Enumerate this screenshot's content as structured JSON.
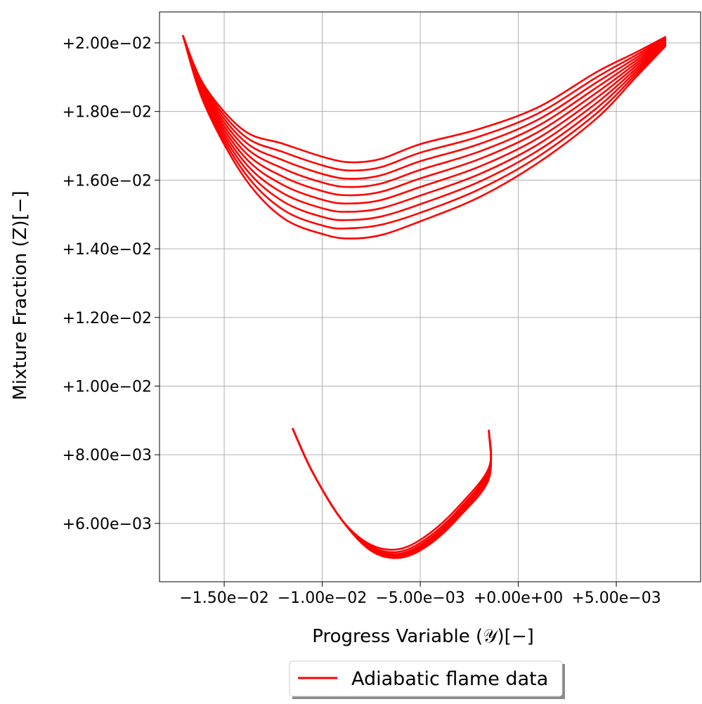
{
  "chart_data": {
    "type": "line",
    "title": "",
    "xlabel": "Progress Variable (𝒴)[−]",
    "ylabel": "Mixture Fraction (Z)[−]",
    "xlim": [
      -0.0183,
      0.0093
    ],
    "ylim": [
      0.0043,
      0.0209
    ],
    "grid": true,
    "legend": {
      "placement": "bottom-center, below plot",
      "entries": [
        "Adiabatic flame data"
      ]
    },
    "line_color": "#ff0000",
    "xticks": [
      {
        "value": -0.015,
        "label": "−1.50e−02"
      },
      {
        "value": -0.01,
        "label": "−1.00e−02"
      },
      {
        "value": -0.005,
        "label": "−5.00e−03"
      },
      {
        "value": 0.0,
        "label": "+0.00e+00"
      },
      {
        "value": 0.005,
        "label": "+5.00e−03"
      }
    ],
    "yticks": [
      {
        "value": 0.006,
        "label": "+6.00e−03"
      },
      {
        "value": 0.008,
        "label": "+8.00e−03"
      },
      {
        "value": 0.01,
        "label": "+1.00e−02"
      },
      {
        "value": 0.012,
        "label": "+1.20e−02"
      },
      {
        "value": 0.014,
        "label": "+1.40e−02"
      },
      {
        "value": 0.016,
        "label": "+1.60e−02"
      },
      {
        "value": 0.018,
        "label": "+1.80e−02"
      },
      {
        "value": 0.02,
        "label": "+2.00e−02"
      }
    ],
    "series": [
      {
        "name": "Adiabatic flame data",
        "x": [
          -0.0171,
          -0.016,
          -0.014,
          -0.012,
          -0.0098,
          -0.0085,
          -0.007,
          -0.005,
          -0.002,
          0.001,
          0.004,
          0.006,
          0.0075
        ],
        "y": [
          0.0202,
          0.0182,
          0.0161,
          0.0149,
          0.0144,
          0.0143,
          0.0144,
          0.0148,
          0.0155,
          0.0165,
          0.0178,
          0.019,
          0.0199
        ]
      },
      {
        "name": "Adiabatic flame data",
        "x": [
          -0.0171,
          -0.016,
          -0.014,
          -0.012,
          -0.0098,
          -0.0085,
          -0.007,
          -0.005,
          -0.002,
          0.001,
          0.004,
          0.006,
          0.0075
        ],
        "y": [
          0.0202,
          0.01826,
          0.01625,
          0.01514,
          0.01465,
          0.0146,
          0.0147,
          0.01505,
          0.01573,
          0.01668,
          0.01795,
          0.01908,
          0.01993
        ]
      },
      {
        "name": "Adiabatic flame data",
        "x": [
          -0.0171,
          -0.016,
          -0.014,
          -0.012,
          -0.0098,
          -0.0085,
          -0.007,
          -0.005,
          -0.002,
          0.001,
          0.004,
          0.006,
          0.0075
        ],
        "y": [
          0.0202,
          0.01832,
          0.0164,
          0.01538,
          0.0149,
          0.01484,
          0.01494,
          0.0153,
          0.01595,
          0.01686,
          0.0181,
          0.01916,
          0.01996
        ]
      },
      {
        "name": "Adiabatic flame data",
        "x": [
          -0.0171,
          -0.016,
          -0.014,
          -0.012,
          -0.0098,
          -0.0085,
          -0.007,
          -0.005,
          -0.002,
          0.001,
          0.004,
          0.006,
          0.0075
        ],
        "y": [
          0.0202,
          0.01838,
          0.01655,
          0.01562,
          0.01515,
          0.01508,
          0.01518,
          0.01555,
          0.01617,
          0.01704,
          0.01825,
          0.01924,
          0.01999
        ]
      },
      {
        "name": "Adiabatic flame data",
        "x": [
          -0.0171,
          -0.016,
          -0.014,
          -0.012,
          -0.0098,
          -0.0085,
          -0.007,
          -0.005,
          -0.002,
          0.001,
          0.004,
          0.006,
          0.0075
        ],
        "y": [
          0.0202,
          0.01844,
          0.0167,
          0.01586,
          0.0154,
          0.01532,
          0.01542,
          0.0158,
          0.01639,
          0.01722,
          0.0184,
          0.01932,
          0.02002
        ]
      },
      {
        "name": "Adiabatic flame data",
        "x": [
          -0.0171,
          -0.016,
          -0.014,
          -0.012,
          -0.0098,
          -0.0085,
          -0.007,
          -0.005,
          -0.002,
          0.001,
          0.004,
          0.006,
          0.0075
        ],
        "y": [
          0.0202,
          0.0185,
          0.01685,
          0.0161,
          0.01565,
          0.01556,
          0.01566,
          0.01605,
          0.01661,
          0.0174,
          0.01855,
          0.0194,
          0.02005
        ]
      },
      {
        "name": "Adiabatic flame data",
        "x": [
          -0.0171,
          -0.016,
          -0.014,
          -0.012,
          -0.0098,
          -0.0085,
          -0.007,
          -0.005,
          -0.002,
          0.001,
          0.004,
          0.006,
          0.0075
        ],
        "y": [
          0.0202,
          0.01856,
          0.017,
          0.01634,
          0.0159,
          0.0158,
          0.0159,
          0.0163,
          0.01683,
          0.01758,
          0.0187,
          0.01948,
          0.02008
        ]
      },
      {
        "name": "Adiabatic flame data",
        "x": [
          -0.0171,
          -0.016,
          -0.014,
          -0.012,
          -0.0098,
          -0.0085,
          -0.007,
          -0.005,
          -0.002,
          0.001,
          0.004,
          0.006,
          0.0075
        ],
        "y": [
          0.0202,
          0.01862,
          0.01715,
          0.01658,
          0.01615,
          0.01604,
          0.01614,
          0.01655,
          0.01705,
          0.01776,
          0.01885,
          0.01956,
          0.02011
        ]
      },
      {
        "name": "Adiabatic flame data",
        "x": [
          -0.0171,
          -0.016,
          -0.014,
          -0.012,
          -0.0098,
          -0.0085,
          -0.007,
          -0.005,
          -0.002,
          0.001,
          0.004,
          0.006,
          0.0075
        ],
        "y": [
          0.0202,
          0.01868,
          0.0173,
          0.01682,
          0.0164,
          0.01628,
          0.01638,
          0.0168,
          0.01727,
          0.01794,
          0.019,
          0.01964,
          0.02014
        ]
      },
      {
        "name": "Adiabatic flame data",
        "x": [
          -0.0171,
          -0.016,
          -0.014,
          -0.012,
          -0.0098,
          -0.0085,
          -0.007,
          -0.005,
          -0.002,
          0.001,
          0.004,
          0.006,
          0.0075
        ],
        "y": [
          0.0202,
          0.01874,
          0.01745,
          0.01706,
          0.01665,
          0.01652,
          0.01662,
          0.01705,
          0.01749,
          0.01812,
          0.01915,
          0.01972,
          0.02017
        ]
      },
      {
        "name": "Adiabatic flame data",
        "x": [
          -0.0115,
          -0.0105,
          -0.009,
          -0.0075,
          -0.006,
          -0.0045,
          -0.003,
          -0.0015,
          -0.0015
        ],
        "y": [
          0.00875,
          0.0075,
          0.0061,
          0.0052,
          0.005,
          0.0054,
          0.0062,
          0.0073,
          0.0087
        ]
      },
      {
        "name": "Adiabatic flame data",
        "x": [
          -0.0115,
          -0.0105,
          -0.009,
          -0.0075,
          -0.006,
          -0.0045,
          -0.003,
          -0.0015,
          -0.0015
        ],
        "y": [
          0.00875,
          0.0075,
          0.0061,
          0.00522,
          0.00503,
          0.00545,
          0.00625,
          0.0074,
          0.0087
        ]
      },
      {
        "name": "Adiabatic flame data",
        "x": [
          -0.0115,
          -0.0105,
          -0.009,
          -0.0075,
          -0.006,
          -0.0045,
          -0.003,
          -0.0015,
          -0.0015
        ],
        "y": [
          0.00875,
          0.0075,
          0.0061,
          0.00525,
          0.00507,
          0.0055,
          0.0063,
          0.00745,
          0.0087
        ]
      },
      {
        "name": "Adiabatic flame data",
        "x": [
          -0.0115,
          -0.0105,
          -0.009,
          -0.0075,
          -0.006,
          -0.0045,
          -0.003,
          -0.0015,
          -0.0015
        ],
        "y": [
          0.00875,
          0.0075,
          0.0061,
          0.00528,
          0.00512,
          0.00556,
          0.00636,
          0.0075,
          0.0087
        ]
      },
      {
        "name": "Adiabatic flame data",
        "x": [
          -0.0115,
          -0.0105,
          -0.009,
          -0.0075,
          -0.006,
          -0.0045,
          -0.003,
          -0.0015,
          -0.0015
        ],
        "y": [
          0.00875,
          0.0075,
          0.0061,
          0.00532,
          0.00518,
          0.00563,
          0.00643,
          0.00755,
          0.0087
        ]
      },
      {
        "name": "Adiabatic flame data",
        "x": [
          -0.0115,
          -0.0105,
          -0.009,
          -0.0075,
          -0.006,
          -0.0045,
          -0.003,
          -0.0015,
          -0.0015
        ],
        "y": [
          0.00875,
          0.0075,
          0.0061,
          0.00537,
          0.00526,
          0.00572,
          0.00652,
          0.00762,
          0.0087
        ]
      }
    ]
  }
}
